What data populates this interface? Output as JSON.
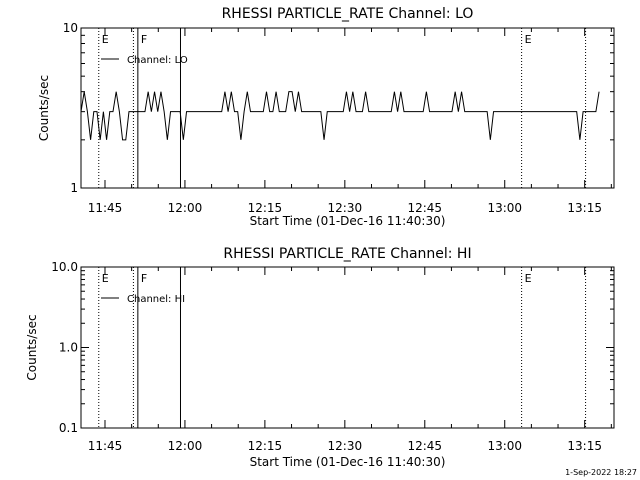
{
  "chart_data": [
    {
      "type": "line",
      "title": "RHESSI PARTICLE_RATE Channel: LO",
      "xlabel": "Start Time (01-Dec-16 11:40:30)",
      "ylabel": "Counts/sec",
      "yscale": "log",
      "ylim": [
        1,
        10
      ],
      "xlim": [
        "11:40:30",
        "13:20:30"
      ],
      "x_ticks": [
        "11:45",
        "12:00",
        "12:15",
        "12:30",
        "12:45",
        "13:00",
        "13:15"
      ],
      "y_ticks": [
        "1",
        "10"
      ],
      "grid": false,
      "legend": "top-left",
      "series": [
        {
          "name": "Channel: LO",
          "color": "#000000",
          "x_start": "11:40:30",
          "x_step_seconds": 36,
          "values": [
            3,
            4,
            3,
            2,
            3,
            3,
            2,
            3,
            2,
            3,
            3,
            4,
            3,
            2,
            2,
            3,
            3,
            3,
            3,
            3,
            3,
            4,
            3,
            4,
            3,
            4,
            3,
            2,
            3,
            3,
            3,
            3,
            2,
            3,
            3,
            3,
            3,
            3,
            3,
            3,
            3,
            3,
            3,
            3,
            3,
            4,
            3,
            4,
            3,
            3,
            2,
            3,
            4,
            3,
            3,
            3,
            3,
            3,
            4,
            3,
            3,
            4,
            3,
            3,
            3,
            4,
            4,
            3,
            4,
            3,
            3,
            3,
            3,
            3,
            3,
            3,
            2,
            3,
            3,
            3,
            3,
            3,
            3,
            4,
            3,
            4,
            3,
            3,
            3,
            4,
            3,
            3,
            3,
            3,
            3,
            3,
            3,
            3,
            4,
            3,
            4,
            3,
            3,
            3,
            3,
            3,
            3,
            3,
            4,
            3,
            3,
            3,
            3,
            3,
            3,
            3,
            3,
            4,
            3,
            4,
            3,
            3,
            3,
            3,
            3,
            3,
            3,
            3,
            2,
            3,
            3,
            3,
            3,
            3,
            3,
            3,
            3,
            3,
            3,
            3,
            3,
            3,
            3,
            3,
            3,
            3,
            3,
            3,
            3,
            3,
            3,
            3,
            3,
            3,
            3,
            3,
            2,
            3,
            3,
            3,
            3,
            3,
            4
          ]
        }
      ],
      "markers": [
        {
          "time": "11:43:50",
          "label": "E",
          "style": "dotted"
        },
        {
          "time": "11:50:20",
          "label": "",
          "style": "dotted"
        },
        {
          "time": "11:51:10",
          "label": "F",
          "style": "solid"
        },
        {
          "time": "11:59:10",
          "label": "",
          "style": "solid"
        },
        {
          "time": "13:03:10",
          "label": "E",
          "style": "dotted"
        },
        {
          "time": "13:15:10",
          "label": "",
          "style": "dotted"
        }
      ]
    },
    {
      "type": "line",
      "title": "RHESSI PARTICLE_RATE Channel: HI",
      "xlabel": "Start Time (01-Dec-16 11:40:30)",
      "ylabel": "Counts/sec",
      "yscale": "log",
      "ylim": [
        0.1,
        10
      ],
      "xlim": [
        "11:40:30",
        "13:20:30"
      ],
      "x_ticks": [
        "11:45",
        "12:00",
        "12:15",
        "12:30",
        "12:45",
        "13:00",
        "13:15"
      ],
      "y_ticks": [
        "0.1",
        "1.0",
        "10.0"
      ],
      "grid": false,
      "legend": "top-left",
      "series": [
        {
          "name": "Channel: HI",
          "color": "#000000",
          "values": []
        }
      ],
      "markers": [
        {
          "time": "11:43:50",
          "label": "E",
          "style": "dotted"
        },
        {
          "time": "11:50:20",
          "label": "",
          "style": "dotted"
        },
        {
          "time": "11:51:10",
          "label": "F",
          "style": "solid"
        },
        {
          "time": "11:59:10",
          "label": "",
          "style": "solid"
        },
        {
          "time": "13:03:10",
          "label": "E",
          "style": "dotted"
        },
        {
          "time": "13:15:10",
          "label": "",
          "style": "dotted"
        }
      ]
    }
  ],
  "footer": {
    "timestamp": "1-Sep-2022 18:27"
  }
}
